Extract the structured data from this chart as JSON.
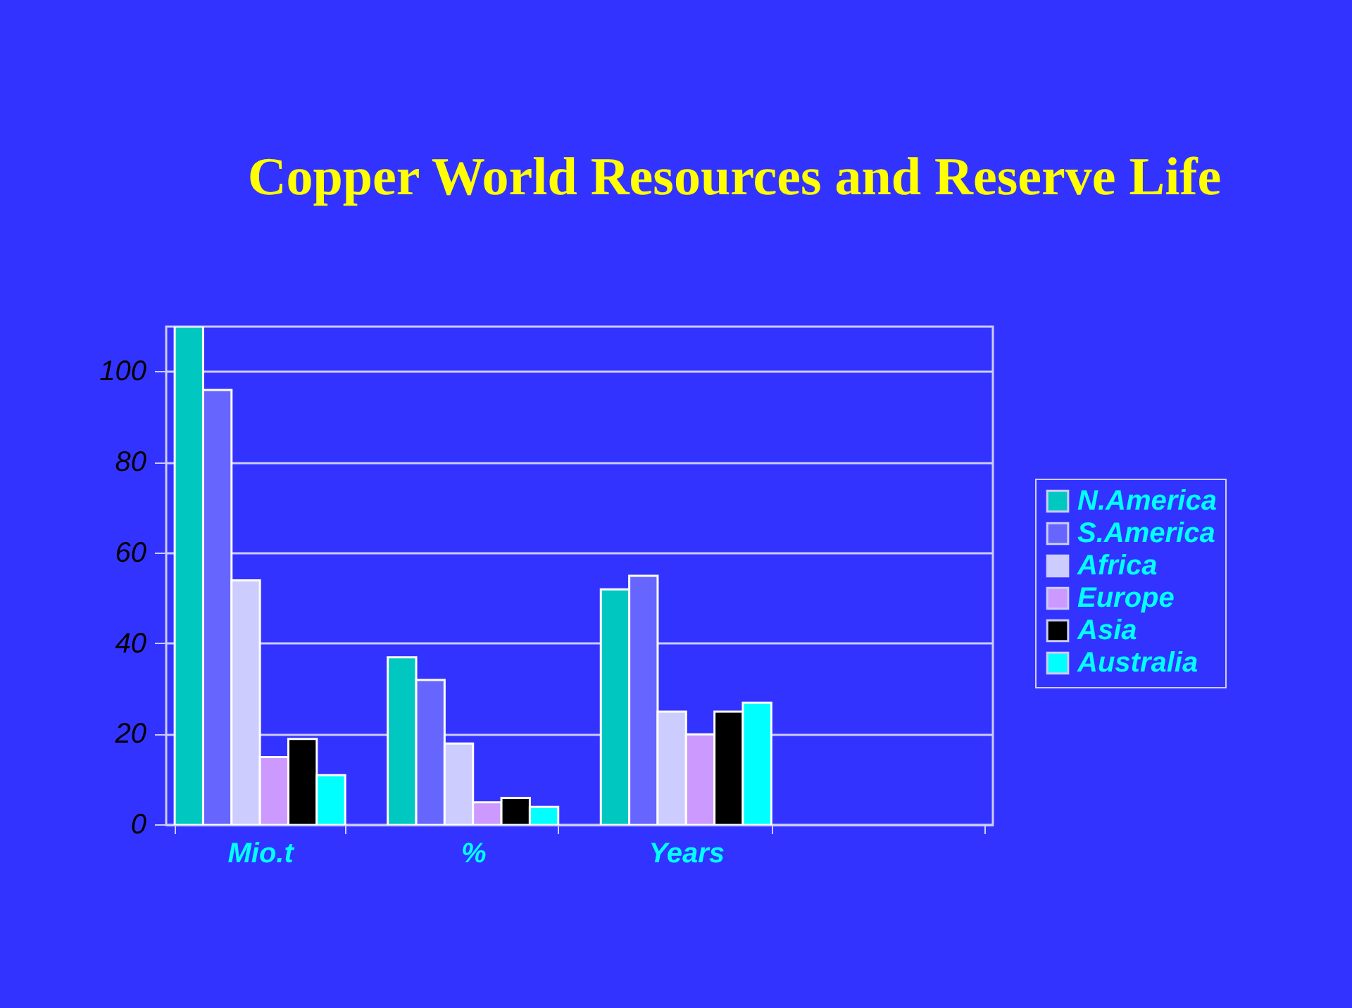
{
  "chart_data": {
    "type": "bar",
    "title": "Copper World Resources and Reserve Life",
    "categories": [
      "Mio.t",
      "%",
      "Years",
      null
    ],
    "series": [
      {
        "name": "N.America",
        "color": "#00c8c0",
        "values": [
          110,
          37,
          52,
          null
        ]
      },
      {
        "name": "S.America",
        "color": "#6666ff",
        "values": [
          96,
          32,
          55,
          null
        ]
      },
      {
        "name": "Africa",
        "color": "#ccccff",
        "values": [
          54,
          18,
          25,
          null
        ]
      },
      {
        "name": "Europe",
        "color": "#cc99ff",
        "values": [
          15,
          5,
          20,
          null
        ]
      },
      {
        "name": "Asia",
        "color": "#000000",
        "values": [
          19,
          6,
          25,
          null
        ]
      },
      {
        "name": "Australia",
        "color": "#00ffff",
        "values": [
          11,
          4,
          27,
          null
        ]
      }
    ],
    "ylim": [
      0,
      110
    ],
    "yticks": [
      0,
      20,
      40,
      60,
      80,
      100
    ],
    "grid": "y",
    "legend": "right"
  }
}
